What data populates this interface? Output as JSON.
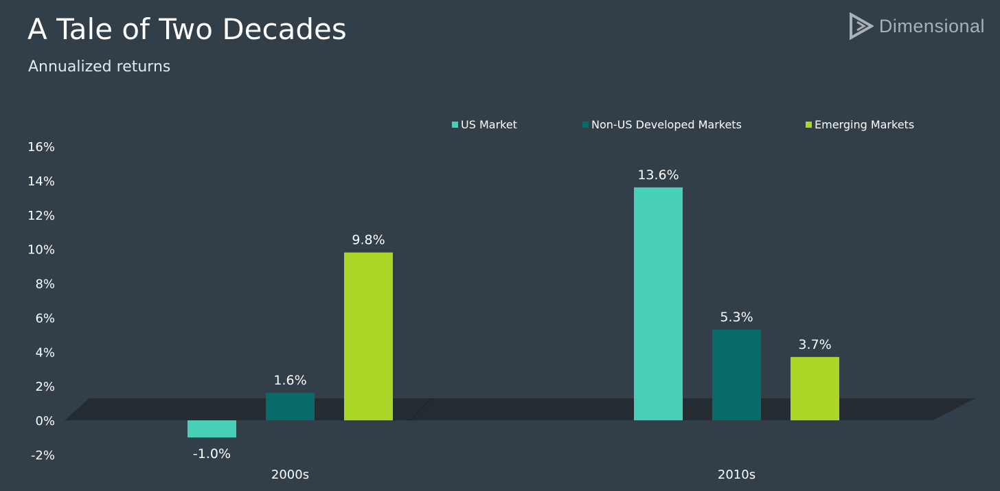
{
  "header": {
    "title": "A Tale of Two Decades",
    "subtitle": "Annualized returns"
  },
  "brand": {
    "name": "Dimensional",
    "icon": "dimensional-logo-icon"
  },
  "colors": {
    "background": "#323e48",
    "platform": "#242b31",
    "us_market": "#48cfb7",
    "non_us_developed": "#086b6a",
    "emerging": "#acd627",
    "text": "#ffffff",
    "brand": "#a9b0b6"
  },
  "chart_data": {
    "type": "bar",
    "title": "A Tale of Two Decades",
    "subtitle": "Annualized returns",
    "categories": [
      "2000s",
      "2010s"
    ],
    "series": [
      {
        "name": "US Market",
        "values": [
          -1.0,
          13.6
        ],
        "labels": [
          "-1.0%",
          "13.6%"
        ],
        "color": "#48cfb7"
      },
      {
        "name": "Non-US Developed Markets",
        "values": [
          1.6,
          5.3
        ],
        "labels": [
          "1.6%",
          "5.3%"
        ],
        "color": "#086b6a"
      },
      {
        "name": "Emerging Markets",
        "values": [
          9.8,
          3.7
        ],
        "labels": [
          "9.8%",
          "3.7%"
        ],
        "color": "#acd627"
      }
    ],
    "yticks": [
      {
        "value": -2,
        "label": "-2%"
      },
      {
        "value": 0,
        "label": "0%"
      },
      {
        "value": 2,
        "label": "2%"
      },
      {
        "value": 4,
        "label": "4%"
      },
      {
        "value": 6,
        "label": "6%"
      },
      {
        "value": 8,
        "label": "8%"
      },
      {
        "value": 10,
        "label": "10%"
      },
      {
        "value": 12,
        "label": "12%"
      },
      {
        "value": 14,
        "label": "14%"
      },
      {
        "value": 16,
        "label": "16%"
      }
    ],
    "ylim": [
      -2,
      16
    ],
    "xlabel": "",
    "ylabel": "",
    "grid": false,
    "legend_position": "top-right"
  }
}
